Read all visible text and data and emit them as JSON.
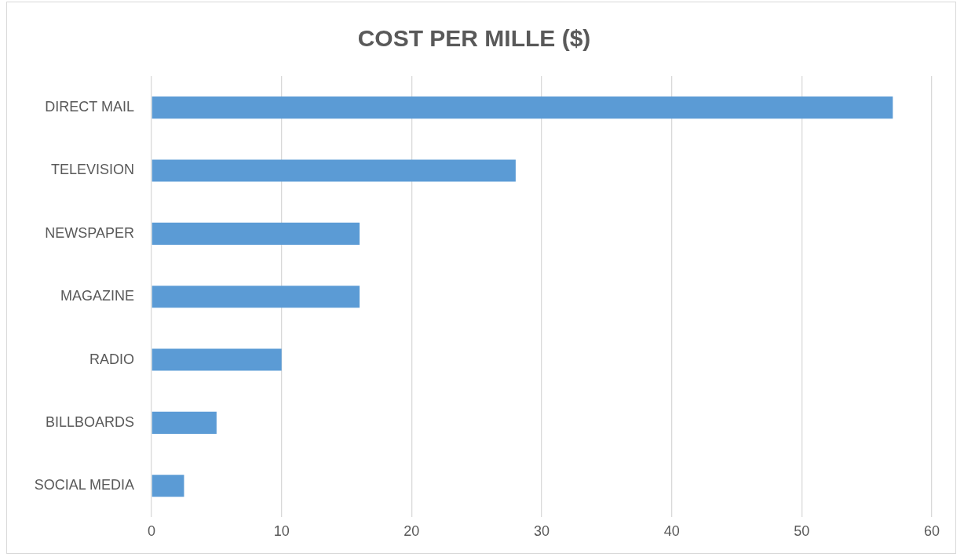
{
  "chart_data": {
    "type": "bar",
    "orientation": "horizontal",
    "title": "COST PER MILLE ($)",
    "categories": [
      "DIRECT MAIL",
      "TELEVISION",
      "NEWSPAPER",
      "MAGAZINE",
      "RADIO",
      "BILLBOARDS",
      "SOCIAL MEDIA"
    ],
    "values": [
      57,
      28,
      16,
      16,
      10,
      5,
      2.5
    ],
    "color": "#5b9bd5",
    "xlim": [
      0,
      60
    ],
    "xticks": [
      0,
      10,
      20,
      30,
      40,
      50,
      60
    ],
    "grid": "x",
    "legend": false
  }
}
